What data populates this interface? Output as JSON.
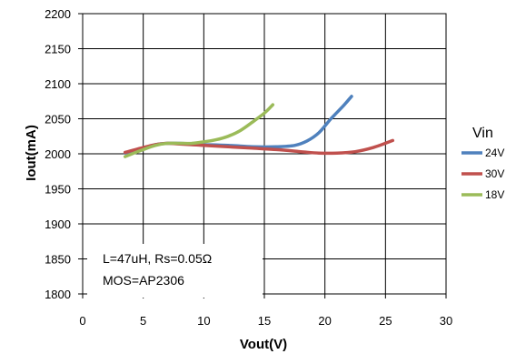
{
  "chart_data": {
    "type": "line",
    "xlabel": "Vout(V)",
    "ylabel": "Iout(mA)",
    "xlim": [
      0,
      30
    ],
    "ylim": [
      1800,
      2200
    ],
    "x_ticks": [
      0,
      5,
      10,
      15,
      20,
      25,
      30
    ],
    "y_ticks": [
      1800,
      1850,
      1900,
      1950,
      2000,
      2050,
      2100,
      2150,
      2200
    ],
    "grid": true,
    "legend": {
      "title": "Vin",
      "placement": "right"
    },
    "annotation": {
      "line1": "L=47uH, Rs=0.05Ω",
      "line2": "MOS=AP2306"
    },
    "series": [
      {
        "name": "24V",
        "color": "#4f81bd",
        "points": [
          [
            3.5,
            2001
          ],
          [
            5,
            2008
          ],
          [
            6,
            2013
          ],
          [
            7,
            2015
          ],
          [
            8,
            2015
          ],
          [
            9,
            2014
          ],
          [
            10,
            2013
          ],
          [
            12,
            2012
          ],
          [
            14,
            2010
          ],
          [
            16,
            2010
          ],
          [
            17.5,
            2012
          ],
          [
            18.5,
            2018
          ],
          [
            19.5,
            2030
          ],
          [
            20.5,
            2050
          ],
          [
            21.5,
            2068
          ],
          [
            22.2,
            2082
          ]
        ]
      },
      {
        "name": "30V",
        "color": "#c0504d",
        "points": [
          [
            3.5,
            2002
          ],
          [
            5,
            2009
          ],
          [
            6,
            2013
          ],
          [
            7,
            2015
          ],
          [
            8,
            2014
          ],
          [
            9,
            2013
          ],
          [
            10,
            2012
          ],
          [
            12,
            2010
          ],
          [
            14,
            2008
          ],
          [
            16,
            2006
          ],
          [
            18,
            2003
          ],
          [
            19.5,
            2001
          ],
          [
            21,
            2001
          ],
          [
            22.5,
            2003
          ],
          [
            24,
            2009
          ],
          [
            25.6,
            2019
          ]
        ]
      },
      {
        "name": "18V",
        "color": "#9bbb59",
        "points": [
          [
            3.5,
            1996
          ],
          [
            5,
            2006
          ],
          [
            6,
            2012
          ],
          [
            7,
            2015
          ],
          [
            8,
            2015
          ],
          [
            9,
            2015
          ],
          [
            10,
            2017
          ],
          [
            11,
            2020
          ],
          [
            12,
            2025
          ],
          [
            13,
            2033
          ],
          [
            14,
            2045
          ],
          [
            15,
            2058
          ],
          [
            15.7,
            2070
          ]
        ]
      }
    ]
  }
}
